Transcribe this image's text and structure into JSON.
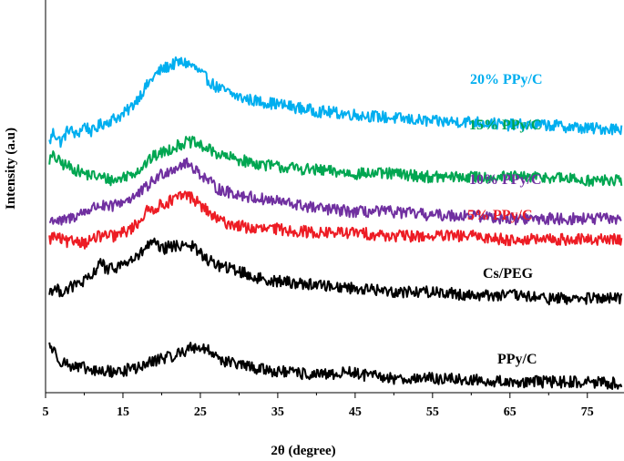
{
  "chart_data": {
    "type": "line",
    "title": "",
    "xlabel": "2θ (degree)",
    "ylabel": "Intensity (a.u)",
    "xlim": [
      5,
      79.5
    ],
    "xticks": [
      5,
      15,
      25,
      35,
      45,
      55,
      65,
      75
    ],
    "yticks_shown": false,
    "grid": false,
    "legend": "inline labels next to each curve",
    "note_y_units": "arbitrary intensity units, curves vertically offset",
    "series": [
      {
        "name": "20% PPy/C",
        "color": "#00AEEF",
        "points": [
          [
            5.5,
            70
          ],
          [
            6,
            73
          ],
          [
            7,
            70
          ],
          [
            8,
            74
          ],
          [
            9,
            72
          ],
          [
            10,
            75
          ],
          [
            11,
            73
          ],
          [
            12,
            75
          ],
          [
            13,
            76
          ],
          [
            14,
            77
          ],
          [
            15,
            78
          ],
          [
            16,
            80
          ],
          [
            17,
            83
          ],
          [
            18,
            86
          ],
          [
            19,
            89
          ],
          [
            20,
            91
          ],
          [
            21,
            92
          ],
          [
            22,
            93
          ],
          [
            23,
            93
          ],
          [
            24,
            92
          ],
          [
            25,
            90
          ],
          [
            26,
            88
          ],
          [
            27,
            86
          ],
          [
            28,
            85
          ],
          [
            30,
            83
          ],
          [
            32,
            82
          ],
          [
            35,
            81
          ],
          [
            40,
            79
          ],
          [
            45,
            78
          ],
          [
            50,
            77
          ],
          [
            55,
            76
          ],
          [
            60,
            76
          ],
          [
            65,
            75
          ],
          [
            70,
            75
          ],
          [
            75,
            74
          ],
          [
            79.5,
            74
          ]
        ]
      },
      {
        "name": "15% PPy/C",
        "color": "#00A651",
        "points": [
          [
            5.5,
            65
          ],
          [
            6,
            66
          ],
          [
            7,
            64
          ],
          [
            8,
            63
          ],
          [
            9,
            62
          ],
          [
            10,
            61
          ],
          [
            12,
            60
          ],
          [
            14,
            59
          ],
          [
            15,
            60
          ],
          [
            16,
            61
          ],
          [
            17,
            62
          ],
          [
            18,
            64
          ],
          [
            19,
            66
          ],
          [
            20,
            67
          ],
          [
            21,
            68
          ],
          [
            22,
            69
          ],
          [
            23,
            70
          ],
          [
            24,
            70
          ],
          [
            25,
            69
          ],
          [
            26,
            68
          ],
          [
            27,
            67
          ],
          [
            28,
            66
          ],
          [
            30,
            65
          ],
          [
            32,
            64
          ],
          [
            35,
            63
          ],
          [
            40,
            62
          ],
          [
            45,
            61
          ],
          [
            50,
            61
          ],
          [
            55,
            60
          ],
          [
            60,
            60
          ],
          [
            65,
            60
          ],
          [
            70,
            60
          ],
          [
            75,
            59
          ],
          [
            79.5,
            59
          ]
        ]
      },
      {
        "name": "10% PPy/C",
        "color": "#7030A0",
        "points": [
          [
            5.5,
            47
          ],
          [
            6,
            48
          ],
          [
            7,
            47
          ],
          [
            8,
            48
          ],
          [
            9,
            49
          ],
          [
            10,
            50
          ],
          [
            11,
            51
          ],
          [
            12,
            52
          ],
          [
            13,
            51
          ],
          [
            14,
            52
          ],
          [
            15,
            53
          ],
          [
            16,
            54
          ],
          [
            17,
            55
          ],
          [
            18,
            57
          ],
          [
            19,
            59
          ],
          [
            20,
            61
          ],
          [
            21,
            62
          ],
          [
            22,
            63
          ],
          [
            23,
            64
          ],
          [
            24,
            63
          ],
          [
            25,
            61
          ],
          [
            26,
            59
          ],
          [
            27,
            57
          ],
          [
            28,
            56
          ],
          [
            30,
            55
          ],
          [
            32,
            54
          ],
          [
            35,
            53
          ],
          [
            40,
            51
          ],
          [
            45,
            50
          ],
          [
            50,
            50
          ],
          [
            55,
            49
          ],
          [
            60,
            49
          ],
          [
            65,
            48
          ],
          [
            70,
            48
          ],
          [
            75,
            48
          ],
          [
            79.5,
            48
          ]
        ]
      },
      {
        "name": "5% PPy/C",
        "color": "#ED1C24",
        "points": [
          [
            5.5,
            42
          ],
          [
            6,
            43
          ],
          [
            7,
            42
          ],
          [
            8,
            41
          ],
          [
            9,
            42
          ],
          [
            10,
            41
          ],
          [
            11,
            42
          ],
          [
            12,
            43
          ],
          [
            13,
            43
          ],
          [
            14,
            43
          ],
          [
            15,
            44
          ],
          [
            16,
            45
          ],
          [
            17,
            47
          ],
          [
            18,
            50
          ],
          [
            19,
            51
          ],
          [
            20,
            52
          ],
          [
            21,
            53
          ],
          [
            22,
            54
          ],
          [
            23,
            55
          ],
          [
            24,
            54
          ],
          [
            25,
            52
          ],
          [
            26,
            50
          ],
          [
            27,
            48
          ],
          [
            28,
            47
          ],
          [
            30,
            46
          ],
          [
            32,
            45
          ],
          [
            35,
            45
          ],
          [
            40,
            44
          ],
          [
            45,
            44
          ],
          [
            50,
            43
          ],
          [
            55,
            43
          ],
          [
            60,
            43
          ],
          [
            65,
            42
          ],
          [
            70,
            42
          ],
          [
            75,
            42
          ],
          [
            79.5,
            42
          ]
        ]
      },
      {
        "name": "Cs/PEG",
        "color": "#000000",
        "points": [
          [
            5.5,
            27
          ],
          [
            6,
            28
          ],
          [
            7,
            27
          ],
          [
            8,
            28
          ],
          [
            9,
            29
          ],
          [
            10,
            30
          ],
          [
            11,
            31
          ],
          [
            12,
            36
          ],
          [
            13,
            33
          ],
          [
            14,
            34
          ],
          [
            15,
            35
          ],
          [
            16,
            36
          ],
          [
            17,
            37
          ],
          [
            18,
            40
          ],
          [
            19,
            41
          ],
          [
            20,
            39
          ],
          [
            21,
            40
          ],
          [
            22,
            40
          ],
          [
            23,
            41
          ],
          [
            24,
            40
          ],
          [
            25,
            38
          ],
          [
            26,
            36
          ],
          [
            27,
            35
          ],
          [
            28,
            34
          ],
          [
            30,
            33
          ],
          [
            32,
            31
          ],
          [
            35,
            30
          ],
          [
            40,
            29
          ],
          [
            45,
            28
          ],
          [
            50,
            27
          ],
          [
            55,
            27
          ],
          [
            60,
            26
          ],
          [
            65,
            26
          ],
          [
            70,
            25
          ],
          [
            75,
            25
          ],
          [
            79.5,
            25
          ]
        ]
      },
      {
        "name": "PPy/C",
        "color": "#000000",
        "points": [
          [
            5.5,
            12
          ],
          [
            6,
            10
          ],
          [
            7,
            7
          ],
          [
            8,
            6
          ],
          [
            9,
            5
          ],
          [
            10,
            5
          ],
          [
            11,
            4
          ],
          [
            12,
            4
          ],
          [
            13,
            4
          ],
          [
            14,
            4
          ],
          [
            15,
            4
          ],
          [
            16,
            5
          ],
          [
            17,
            5
          ],
          [
            18,
            6
          ],
          [
            19,
            7
          ],
          [
            20,
            8
          ],
          [
            21,
            8
          ],
          [
            22,
            9
          ],
          [
            23,
            10
          ],
          [
            24,
            11
          ],
          [
            25,
            11
          ],
          [
            26,
            10
          ],
          [
            27,
            9
          ],
          [
            28,
            7
          ],
          [
            30,
            6
          ],
          [
            32,
            5
          ],
          [
            35,
            4
          ],
          [
            40,
            3
          ],
          [
            42,
            3
          ],
          [
            44,
            4
          ],
          [
            46,
            3
          ],
          [
            50,
            2
          ],
          [
            55,
            2
          ],
          [
            60,
            1.5
          ],
          [
            65,
            1
          ],
          [
            70,
            1
          ],
          [
            75,
            1
          ],
          [
            79.5,
            0.5
          ]
        ]
      }
    ],
    "xlabel_text": "2θ (degree)"
  },
  "labels": {
    "s20": "20% PPy/C",
    "s15": "15% PPy/C",
    "s10": "10% PPy/C",
    "s5": "5% PPy/C",
    "cspeg": "Cs/PEG",
    "ppyc": "PPy/C"
  }
}
